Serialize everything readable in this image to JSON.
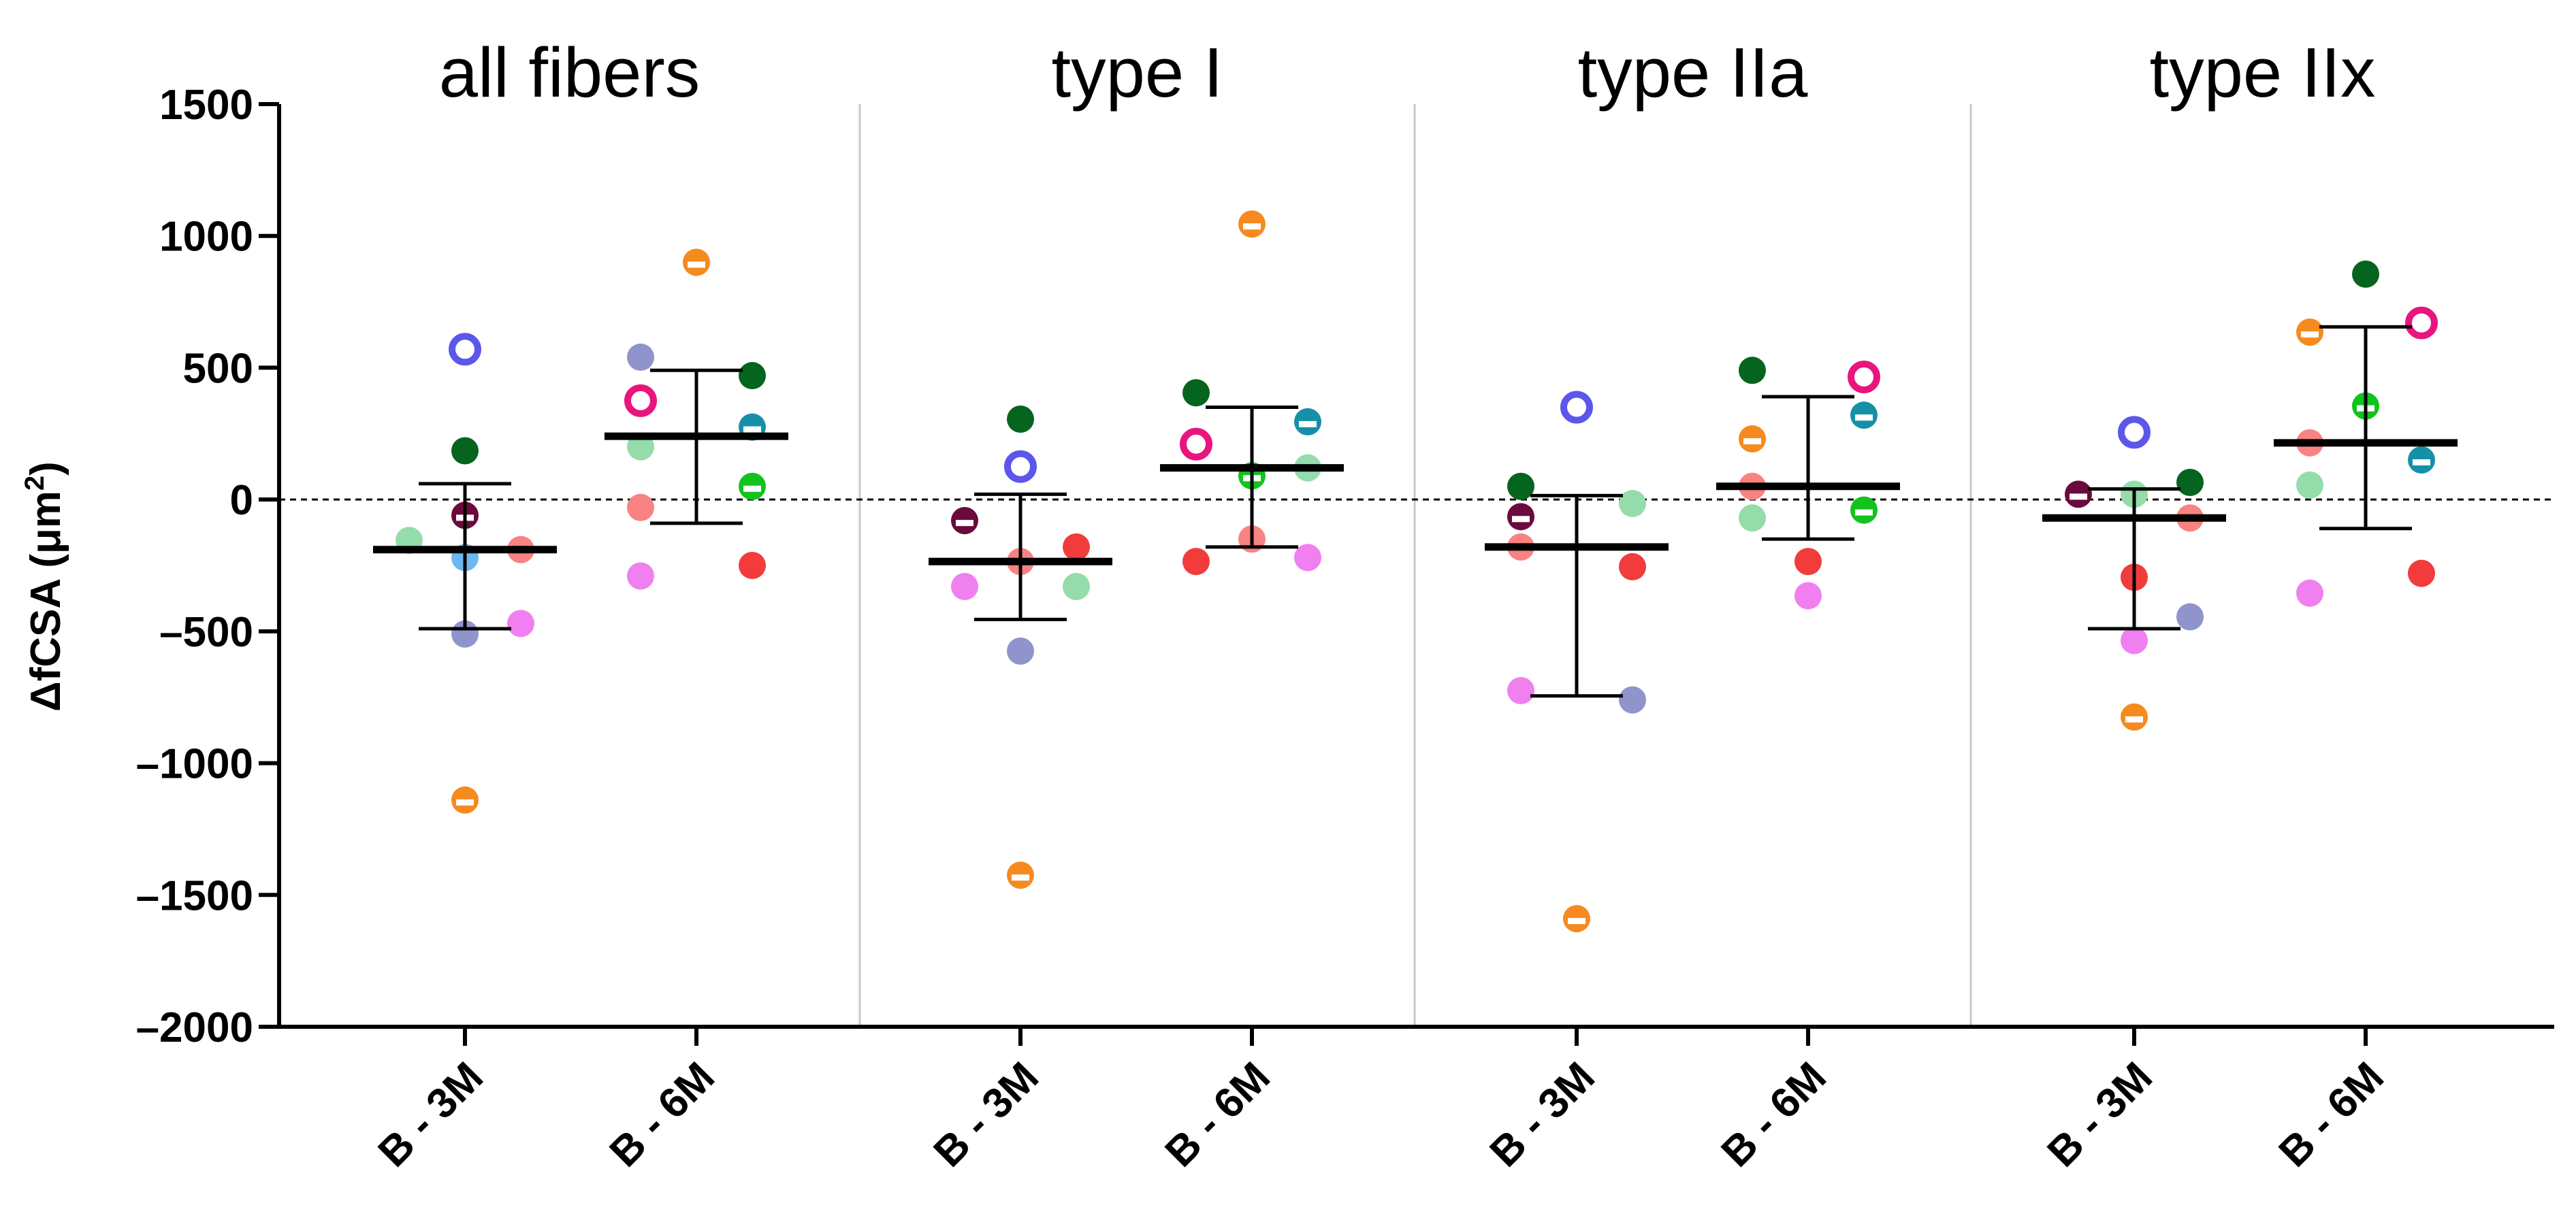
{
  "chart_data": {
    "type": "scatter",
    "ylabel": "ΔfCSA (μm²)",
    "ylabel_base": "ΔfCSA (μm",
    "ylabel_sup": "2",
    "ylabel_close": ")",
    "ylim": [
      -2000,
      1500
    ],
    "yticks": [
      1500,
      1000,
      500,
      0,
      -500,
      -1000,
      -1500,
      -2000
    ],
    "yticklabels": [
      "1500",
      "1000",
      "500",
      "0",
      "–500",
      "–1000",
      "–1500",
      "–2000"
    ],
    "reference_line": 0,
    "group_labels": [
      "B - 3M",
      "B - 6M"
    ],
    "colors": {
      "orange": "#f58a1f",
      "blue": "#5b57ea",
      "darkgreen": "#05641e",
      "maroon": "#6b0a3c",
      "lightgreen": "#95dcab",
      "lightblue": "#6cb7ef",
      "periwinkle": "#8f94cc",
      "salmon": "#f98282",
      "violet": "#f080ef",
      "magenta": "#e9157e",
      "teal": "#1690a8",
      "green": "#12c31d",
      "red": "#f23b3b"
    },
    "panels": [
      {
        "title": "all fibers",
        "groups": [
          {
            "label": "B - 3M",
            "mean": -190,
            "sd_upper": 60,
            "sd_lower": -490,
            "points": [
              {
                "dx": 0,
                "y": 570,
                "color": "blue",
                "style": "ring"
              },
              {
                "dx": 0,
                "y": 185,
                "color": "darkgreen",
                "style": "filled"
              },
              {
                "dx": 0,
                "y": -60,
                "color": "maroon",
                "style": "half"
              },
              {
                "dx": -1,
                "y": -155,
                "color": "lightgreen",
                "style": "filled"
              },
              {
                "dx": 1,
                "y": -190,
                "color": "salmon",
                "style": "filled"
              },
              {
                "dx": 0,
                "y": -220,
                "color": "lightblue",
                "style": "filled"
              },
              {
                "dx": 1,
                "y": -470,
                "color": "violet",
                "style": "filled"
              },
              {
                "dx": 0,
                "y": -510,
                "color": "periwinkle",
                "style": "filled"
              },
              {
                "dx": 0,
                "y": -1140,
                "color": "orange",
                "style": "half"
              }
            ]
          },
          {
            "label": "B - 6M",
            "mean": 240,
            "sd_upper": 490,
            "sd_lower": -90,
            "points": [
              {
                "dx": 0,
                "y": 900,
                "color": "orange",
                "style": "half"
              },
              {
                "dx": -1,
                "y": 540,
                "color": "periwinkle",
                "style": "filled"
              },
              {
                "dx": 1,
                "y": 470,
                "color": "darkgreen",
                "style": "filled"
              },
              {
                "dx": -1,
                "y": 375,
                "color": "magenta",
                "style": "ring"
              },
              {
                "dx": 1,
                "y": 275,
                "color": "teal",
                "style": "half"
              },
              {
                "dx": -1,
                "y": 200,
                "color": "lightgreen",
                "style": "filled"
              },
              {
                "dx": 1,
                "y": 50,
                "color": "green",
                "style": "half"
              },
              {
                "dx": -1,
                "y": -30,
                "color": "salmon",
                "style": "filled"
              },
              {
                "dx": 1,
                "y": -250,
                "color": "red",
                "style": "filled"
              },
              {
                "dx": -1,
                "y": -290,
                "color": "violet",
                "style": "filled"
              }
            ]
          }
        ]
      },
      {
        "title": "type I",
        "groups": [
          {
            "label": "B - 3M",
            "mean": -235,
            "sd_upper": 20,
            "sd_lower": -455,
            "points": [
              {
                "dx": 0,
                "y": 305,
                "color": "darkgreen",
                "style": "filled"
              },
              {
                "dx": 0,
                "y": 125,
                "color": "blue",
                "style": "ring"
              },
              {
                "dx": -1,
                "y": -80,
                "color": "maroon",
                "style": "half"
              },
              {
                "dx": 1,
                "y": -180,
                "color": "red",
                "style": "filled"
              },
              {
                "dx": 0,
                "y": -235,
                "color": "salmon",
                "style": "filled"
              },
              {
                "dx": -1,
                "y": -330,
                "color": "violet",
                "style": "filled"
              },
              {
                "dx": 1,
                "y": -330,
                "color": "lightgreen",
                "style": "filled"
              },
              {
                "dx": 0,
                "y": -575,
                "color": "periwinkle",
                "style": "filled"
              },
              {
                "dx": 0,
                "y": -1425,
                "color": "orange",
                "style": "half"
              }
            ]
          },
          {
            "label": "B - 6M",
            "mean": 120,
            "sd_upper": 350,
            "sd_lower": -180,
            "points": [
              {
                "dx": 0,
                "y": 1045,
                "color": "orange",
                "style": "half"
              },
              {
                "dx": -1,
                "y": 405,
                "color": "darkgreen",
                "style": "filled"
              },
              {
                "dx": 1,
                "y": 295,
                "color": "teal",
                "style": "half"
              },
              {
                "dx": -1,
                "y": 210,
                "color": "magenta",
                "style": "ring"
              },
              {
                "dx": 1,
                "y": 120,
                "color": "lightgreen",
                "style": "filled"
              },
              {
                "dx": 0,
                "y": 90,
                "color": "green",
                "style": "half"
              },
              {
                "dx": 0,
                "y": -150,
                "color": "salmon",
                "style": "filled"
              },
              {
                "dx": 1,
                "y": -220,
                "color": "violet",
                "style": "filled"
              },
              {
                "dx": -1,
                "y": -235,
                "color": "red",
                "style": "filled"
              }
            ]
          }
        ]
      },
      {
        "title": "type IIa",
        "groups": [
          {
            "label": "B - 3M",
            "mean": -180,
            "sd_upper": 15,
            "sd_lower": -745,
            "points": [
              {
                "dx": 0,
                "y": 350,
                "color": "blue",
                "style": "ring"
              },
              {
                "dx": -1,
                "y": 50,
                "color": "darkgreen",
                "style": "filled"
              },
              {
                "dx": 1,
                "y": -15,
                "color": "lightgreen",
                "style": "filled"
              },
              {
                "dx": -1,
                "y": -65,
                "color": "maroon",
                "style": "half"
              },
              {
                "dx": -1,
                "y": -180,
                "color": "salmon",
                "style": "filled"
              },
              {
                "dx": 1,
                "y": -255,
                "color": "red",
                "style": "filled"
              },
              {
                "dx": -1,
                "y": -725,
                "color": "violet",
                "style": "filled"
              },
              {
                "dx": 1,
                "y": -760,
                "color": "periwinkle",
                "style": "filled"
              },
              {
                "dx": 0,
                "y": -1590,
                "color": "orange",
                "style": "half"
              }
            ]
          },
          {
            "label": "B - 6M",
            "mean": 50,
            "sd_upper": 390,
            "sd_lower": -150,
            "points": [
              {
                "dx": -1,
                "y": 490,
                "color": "darkgreen",
                "style": "filled"
              },
              {
                "dx": 1,
                "y": 465,
                "color": "magenta",
                "style": "ring"
              },
              {
                "dx": 1,
                "y": 320,
                "color": "teal",
                "style": "half"
              },
              {
                "dx": -1,
                "y": 230,
                "color": "orange",
                "style": "half"
              },
              {
                "dx": -1,
                "y": 50,
                "color": "salmon",
                "style": "filled"
              },
              {
                "dx": 1,
                "y": -40,
                "color": "green",
                "style": "half"
              },
              {
                "dx": -1,
                "y": -70,
                "color": "lightgreen",
                "style": "filled"
              },
              {
                "dx": 0,
                "y": -235,
                "color": "red",
                "style": "filled"
              },
              {
                "dx": 0,
                "y": -365,
                "color": "violet",
                "style": "filled"
              }
            ]
          }
        ]
      },
      {
        "title": "type IIx",
        "groups": [
          {
            "label": "B - 3M",
            "mean": -70,
            "sd_upper": 40,
            "sd_lower": -490,
            "points": [
              {
                "dx": 0,
                "y": 255,
                "color": "blue",
                "style": "ring"
              },
              {
                "dx": 1,
                "y": 65,
                "color": "darkgreen",
                "style": "filled"
              },
              {
                "dx": -1,
                "y": 20,
                "color": "maroon",
                "style": "half"
              },
              {
                "dx": 0,
                "y": 20,
                "color": "lightgreen",
                "style": "filled"
              },
              {
                "dx": 1,
                "y": -70,
                "color": "salmon",
                "style": "filled"
              },
              {
                "dx": 0,
                "y": -295,
                "color": "red",
                "style": "filled"
              },
              {
                "dx": 1,
                "y": -445,
                "color": "periwinkle",
                "style": "filled"
              },
              {
                "dx": 0,
                "y": -535,
                "color": "violet",
                "style": "filled"
              },
              {
                "dx": 0,
                "y": -825,
                "color": "orange",
                "style": "half"
              }
            ]
          },
          {
            "label": "B - 6M",
            "mean": 215,
            "sd_upper": 655,
            "sd_lower": -110,
            "points": [
              {
                "dx": 0,
                "y": 855,
                "color": "darkgreen",
                "style": "filled"
              },
              {
                "dx": 1,
                "y": 670,
                "color": "magenta",
                "style": "ring"
              },
              {
                "dx": -1,
                "y": 635,
                "color": "orange",
                "style": "half"
              },
              {
                "dx": 0,
                "y": 355,
                "color": "green",
                "style": "half"
              },
              {
                "dx": -1,
                "y": 215,
                "color": "salmon",
                "style": "filled"
              },
              {
                "dx": 1,
                "y": 150,
                "color": "teal",
                "style": "half"
              },
              {
                "dx": -1,
                "y": 55,
                "color": "lightgreen",
                "style": "filled"
              },
              {
                "dx": 1,
                "y": -280,
                "color": "red",
                "style": "filled"
              },
              {
                "dx": -1,
                "y": -355,
                "color": "violet",
                "style": "filled"
              }
            ]
          }
        ]
      }
    ]
  }
}
